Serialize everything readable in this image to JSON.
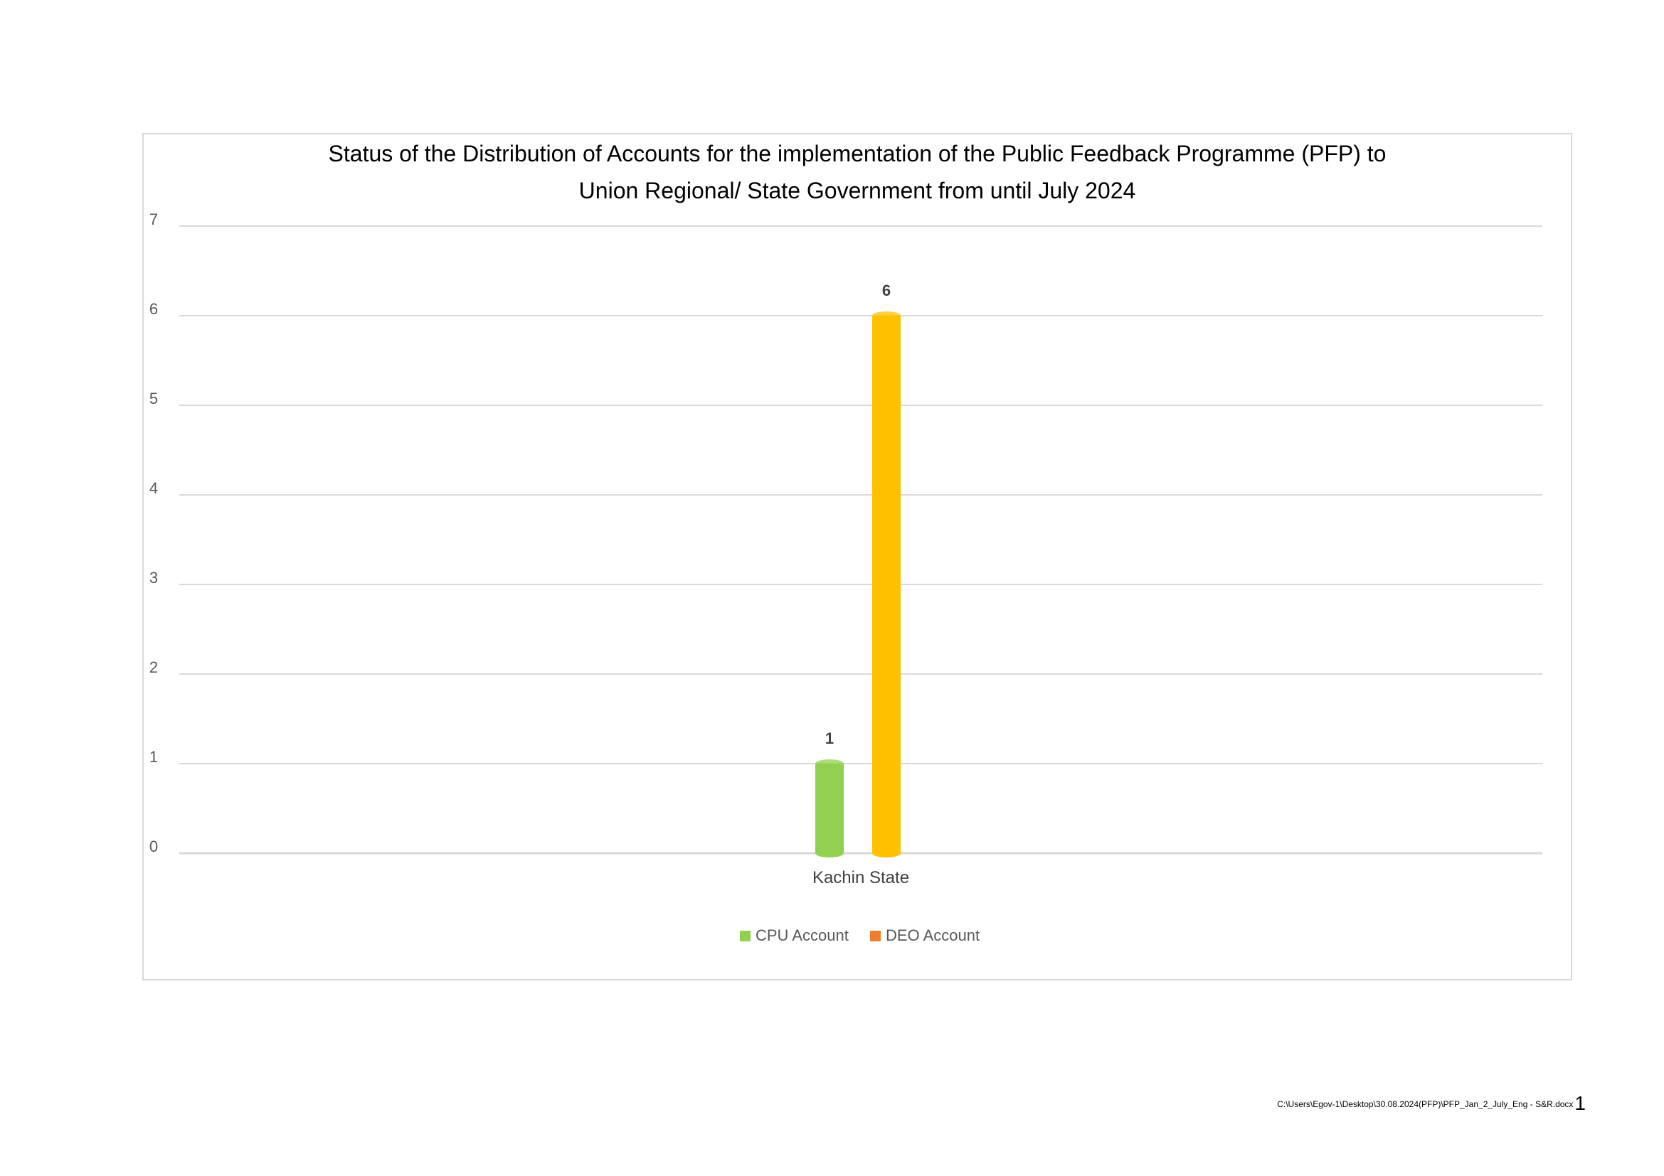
{
  "chart_data": {
    "type": "bar",
    "title_lines": [
      "Status of the Distribution of Accounts for the implementation of the Public Feedback Programme (PFP) to",
      "Union Regional/ State Government from until July 2024"
    ],
    "categories": [
      "Kachin State"
    ],
    "series": [
      {
        "name": "CPU Account",
        "values": [
          1
        ],
        "color": "#92d050",
        "legend_color": "#92d050"
      },
      {
        "name": "DEO Account",
        "values": [
          6
        ],
        "color": "#ffc000",
        "legend_color": "#ed7d31"
      }
    ],
    "data_labels": [
      "1",
      "6"
    ],
    "ylim": [
      0,
      7
    ],
    "yticks": [
      0,
      1,
      2,
      3,
      4,
      5,
      6,
      7
    ],
    "grid": true,
    "legend_position": "bottom",
    "bar_style": "cylinder"
  },
  "footer": {
    "file_path": "C:\\Users\\Egov-1\\Desktop\\30.08.2024(PFP)\\PFP_Jan_2_July_Eng - S&R.docx",
    "page_number": "1"
  }
}
